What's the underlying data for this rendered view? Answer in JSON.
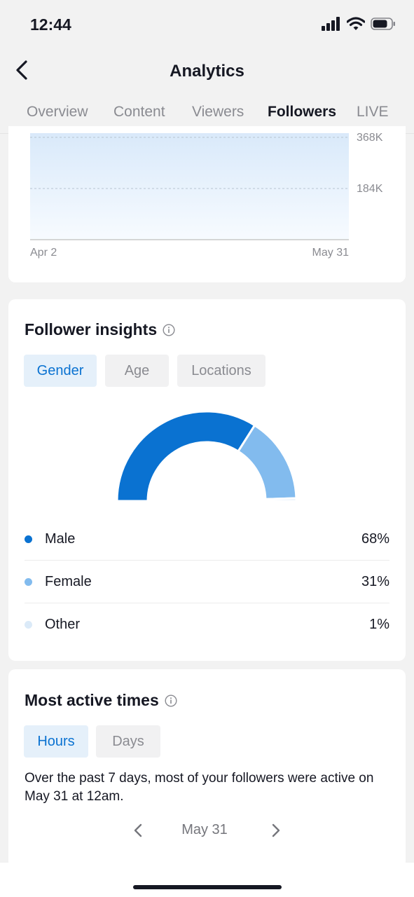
{
  "status_bar": {
    "time": "12:44"
  },
  "header": {
    "title": "Analytics"
  },
  "tabs": [
    {
      "label": "Overview"
    },
    {
      "label": "Content"
    },
    {
      "label": "Viewers"
    },
    {
      "label": "Followers"
    },
    {
      "label": "LIVE"
    }
  ],
  "active_tab": "Followers",
  "follower_chart": {
    "chart_data": {
      "type": "area",
      "x_range": [
        "Apr 2",
        "May 31"
      ],
      "x_tick_labels": [
        "Apr 2",
        "May 31"
      ],
      "y_tick_labels": [
        "368K",
        "184K"
      ],
      "y_ticks": [
        368000,
        184000
      ],
      "grid": true,
      "fill_color": "#dbeafa"
    }
  },
  "follower_insights": {
    "title": "Follower insights",
    "filters": [
      {
        "label": "Gender"
      },
      {
        "label": "Age"
      },
      {
        "label": "Locations"
      }
    ],
    "active_filter": "Gender",
    "chart_data": {
      "type": "pie",
      "categories": [
        "Male",
        "Female",
        "Other"
      ],
      "values": [
        68,
        31,
        1
      ],
      "colors": [
        "#0a72d1",
        "#82bbee",
        "#dbeaf8"
      ]
    },
    "legend": [
      {
        "label": "Male",
        "value": "68%",
        "color": "#0a72d1"
      },
      {
        "label": "Female",
        "value": "31%",
        "color": "#82bbee"
      },
      {
        "label": "Other",
        "value": "1%",
        "color": "#dbeaf8"
      }
    ]
  },
  "most_active": {
    "title": "Most active times",
    "filters": [
      {
        "label": "Hours"
      },
      {
        "label": "Days"
      }
    ],
    "active_filter": "Hours",
    "description": "Over the past 7 days, most of your followers were active on May 31 at 12am.",
    "date": "May 31"
  }
}
